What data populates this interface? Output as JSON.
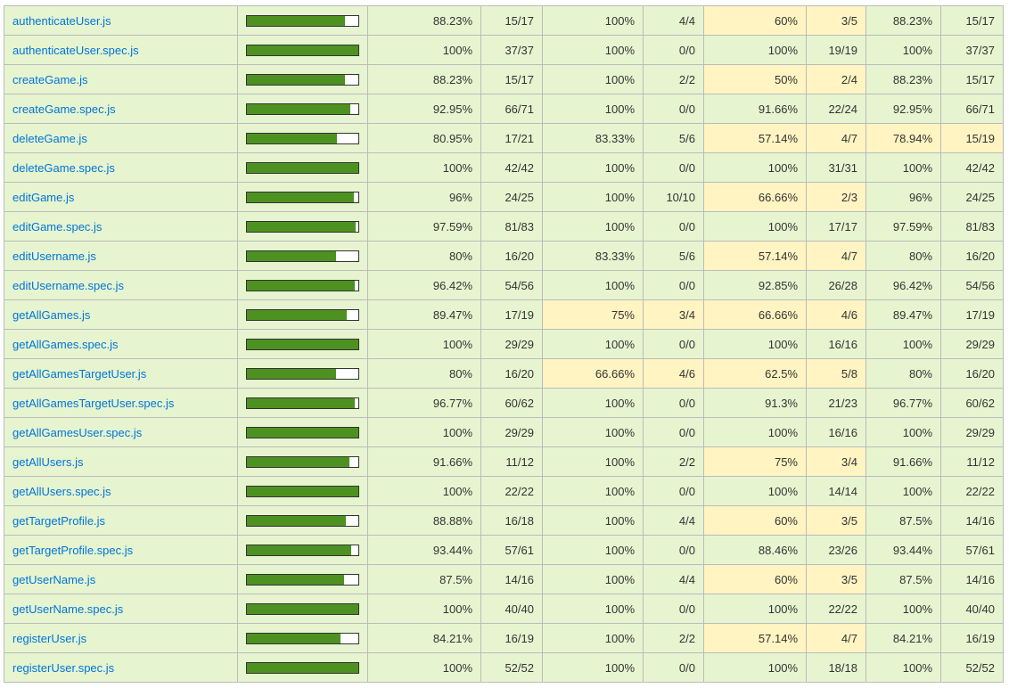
{
  "colors": {
    "high": "#e6f5d0",
    "medium": "#fff4c2",
    "bar_fill": "#4d9221",
    "link": "#0074d9"
  },
  "rows": [
    {
      "file": "authenticateUser.js",
      "pct": 88.23,
      "stmts": "88.23%",
      "stmts_n": "15/17",
      "branches": "100%",
      "branches_n": "4/4",
      "funcs": "60%",
      "funcs_n": "3/5",
      "lines": "88.23%",
      "lines_n": "15/17",
      "c": [
        "high",
        "high",
        "medium",
        "high"
      ]
    },
    {
      "file": "authenticateUser.spec.js",
      "pct": 100,
      "stmts": "100%",
      "stmts_n": "37/37",
      "branches": "100%",
      "branches_n": "0/0",
      "funcs": "100%",
      "funcs_n": "19/19",
      "lines": "100%",
      "lines_n": "37/37",
      "c": [
        "high",
        "high",
        "high",
        "high"
      ]
    },
    {
      "file": "createGame.js",
      "pct": 88.23,
      "stmts": "88.23%",
      "stmts_n": "15/17",
      "branches": "100%",
      "branches_n": "2/2",
      "funcs": "50%",
      "funcs_n": "2/4",
      "lines": "88.23%",
      "lines_n": "15/17",
      "c": [
        "high",
        "high",
        "medium",
        "high"
      ]
    },
    {
      "file": "createGame.spec.js",
      "pct": 92.95,
      "stmts": "92.95%",
      "stmts_n": "66/71",
      "branches": "100%",
      "branches_n": "0/0",
      "funcs": "91.66%",
      "funcs_n": "22/24",
      "lines": "92.95%",
      "lines_n": "66/71",
      "c": [
        "high",
        "high",
        "high",
        "high"
      ]
    },
    {
      "file": "deleteGame.js",
      "pct": 80.95,
      "stmts": "80.95%",
      "stmts_n": "17/21",
      "branches": "83.33%",
      "branches_n": "5/6",
      "funcs": "57.14%",
      "funcs_n": "4/7",
      "lines": "78.94%",
      "lines_n": "15/19",
      "c": [
        "high",
        "high",
        "medium",
        "medium"
      ]
    },
    {
      "file": "deleteGame.spec.js",
      "pct": 100,
      "stmts": "100%",
      "stmts_n": "42/42",
      "branches": "100%",
      "branches_n": "0/0",
      "funcs": "100%",
      "funcs_n": "31/31",
      "lines": "100%",
      "lines_n": "42/42",
      "c": [
        "high",
        "high",
        "high",
        "high"
      ]
    },
    {
      "file": "editGame.js",
      "pct": 96,
      "stmts": "96%",
      "stmts_n": "24/25",
      "branches": "100%",
      "branches_n": "10/10",
      "funcs": "66.66%",
      "funcs_n": "2/3",
      "lines": "96%",
      "lines_n": "24/25",
      "c": [
        "high",
        "high",
        "medium",
        "high"
      ]
    },
    {
      "file": "editGame.spec.js",
      "pct": 97.59,
      "stmts": "97.59%",
      "stmts_n": "81/83",
      "branches": "100%",
      "branches_n": "0/0",
      "funcs": "100%",
      "funcs_n": "17/17",
      "lines": "97.59%",
      "lines_n": "81/83",
      "c": [
        "high",
        "high",
        "high",
        "high"
      ]
    },
    {
      "file": "editUsername.js",
      "pct": 80,
      "stmts": "80%",
      "stmts_n": "16/20",
      "branches": "83.33%",
      "branches_n": "5/6",
      "funcs": "57.14%",
      "funcs_n": "4/7",
      "lines": "80%",
      "lines_n": "16/20",
      "c": [
        "high",
        "high",
        "medium",
        "high"
      ]
    },
    {
      "file": "editUsername.spec.js",
      "pct": 96.42,
      "stmts": "96.42%",
      "stmts_n": "54/56",
      "branches": "100%",
      "branches_n": "0/0",
      "funcs": "92.85%",
      "funcs_n": "26/28",
      "lines": "96.42%",
      "lines_n": "54/56",
      "c": [
        "high",
        "high",
        "high",
        "high"
      ]
    },
    {
      "file": "getAllGames.js",
      "pct": 89.47,
      "stmts": "89.47%",
      "stmts_n": "17/19",
      "branches": "75%",
      "branches_n": "3/4",
      "funcs": "66.66%",
      "funcs_n": "4/6",
      "lines": "89.47%",
      "lines_n": "17/19",
      "c": [
        "high",
        "medium",
        "medium",
        "high"
      ]
    },
    {
      "file": "getAllGames.spec.js",
      "pct": 100,
      "stmts": "100%",
      "stmts_n": "29/29",
      "branches": "100%",
      "branches_n": "0/0",
      "funcs": "100%",
      "funcs_n": "16/16",
      "lines": "100%",
      "lines_n": "29/29",
      "c": [
        "high",
        "high",
        "high",
        "high"
      ]
    },
    {
      "file": "getAllGamesTargetUser.js",
      "pct": 80,
      "stmts": "80%",
      "stmts_n": "16/20",
      "branches": "66.66%",
      "branches_n": "4/6",
      "funcs": "62.5%",
      "funcs_n": "5/8",
      "lines": "80%",
      "lines_n": "16/20",
      "c": [
        "high",
        "medium",
        "medium",
        "high"
      ]
    },
    {
      "file": "getAllGamesTargetUser.spec.js",
      "pct": 96.77,
      "stmts": "96.77%",
      "stmts_n": "60/62",
      "branches": "100%",
      "branches_n": "0/0",
      "funcs": "91.3%",
      "funcs_n": "21/23",
      "lines": "96.77%",
      "lines_n": "60/62",
      "c": [
        "high",
        "high",
        "high",
        "high"
      ]
    },
    {
      "file": "getAllGamesUser.spec.js",
      "pct": 100,
      "stmts": "100%",
      "stmts_n": "29/29",
      "branches": "100%",
      "branches_n": "0/0",
      "funcs": "100%",
      "funcs_n": "16/16",
      "lines": "100%",
      "lines_n": "29/29",
      "c": [
        "high",
        "high",
        "high",
        "high"
      ]
    },
    {
      "file": "getAllUsers.js",
      "pct": 91.66,
      "stmts": "91.66%",
      "stmts_n": "11/12",
      "branches": "100%",
      "branches_n": "2/2",
      "funcs": "75%",
      "funcs_n": "3/4",
      "lines": "91.66%",
      "lines_n": "11/12",
      "c": [
        "high",
        "high",
        "medium",
        "high"
      ]
    },
    {
      "file": "getAllUsers.spec.js",
      "pct": 100,
      "stmts": "100%",
      "stmts_n": "22/22",
      "branches": "100%",
      "branches_n": "0/0",
      "funcs": "100%",
      "funcs_n": "14/14",
      "lines": "100%",
      "lines_n": "22/22",
      "c": [
        "high",
        "high",
        "high",
        "high"
      ]
    },
    {
      "file": "getTargetProfile.js",
      "pct": 88.88,
      "stmts": "88.88%",
      "stmts_n": "16/18",
      "branches": "100%",
      "branches_n": "4/4",
      "funcs": "60%",
      "funcs_n": "3/5",
      "lines": "87.5%",
      "lines_n": "14/16",
      "c": [
        "high",
        "high",
        "medium",
        "high"
      ]
    },
    {
      "file": "getTargetProfile.spec.js",
      "pct": 93.44,
      "stmts": "93.44%",
      "stmts_n": "57/61",
      "branches": "100%",
      "branches_n": "0/0",
      "funcs": "88.46%",
      "funcs_n": "23/26",
      "lines": "93.44%",
      "lines_n": "57/61",
      "c": [
        "high",
        "high",
        "high",
        "high"
      ]
    },
    {
      "file": "getUserName.js",
      "pct": 87.5,
      "stmts": "87.5%",
      "stmts_n": "14/16",
      "branches": "100%",
      "branches_n": "4/4",
      "funcs": "60%",
      "funcs_n": "3/5",
      "lines": "87.5%",
      "lines_n": "14/16",
      "c": [
        "high",
        "high",
        "medium",
        "high"
      ]
    },
    {
      "file": "getUserName.spec.js",
      "pct": 100,
      "stmts": "100%",
      "stmts_n": "40/40",
      "branches": "100%",
      "branches_n": "0/0",
      "funcs": "100%",
      "funcs_n": "22/22",
      "lines": "100%",
      "lines_n": "40/40",
      "c": [
        "high",
        "high",
        "high",
        "high"
      ]
    },
    {
      "file": "registerUser.js",
      "pct": 84.21,
      "stmts": "84.21%",
      "stmts_n": "16/19",
      "branches": "100%",
      "branches_n": "2/2",
      "funcs": "57.14%",
      "funcs_n": "4/7",
      "lines": "84.21%",
      "lines_n": "16/19",
      "c": [
        "high",
        "high",
        "medium",
        "high"
      ]
    },
    {
      "file": "registerUser.spec.js",
      "pct": 100,
      "stmts": "100%",
      "stmts_n": "52/52",
      "branches": "100%",
      "branches_n": "0/0",
      "funcs": "100%",
      "funcs_n": "18/18",
      "lines": "100%",
      "lines_n": "52/52",
      "c": [
        "high",
        "high",
        "high",
        "high"
      ]
    }
  ]
}
